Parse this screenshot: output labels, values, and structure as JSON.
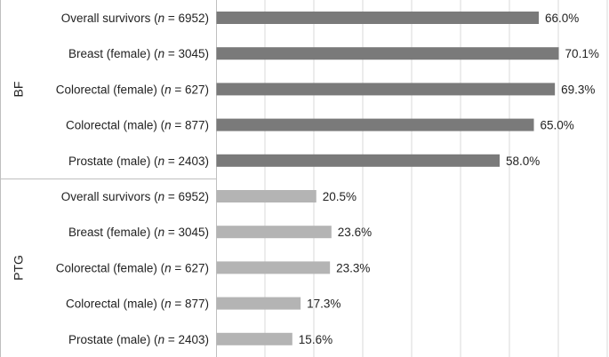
{
  "chart_data": {
    "type": "bar",
    "orientation": "horizontal",
    "title": "",
    "xlabel": "",
    "ylabel": "",
    "xlim": [
      0,
      80
    ],
    "grid": true,
    "groups": [
      {
        "name": "BF",
        "color": "#7a7a7a",
        "categories": [
          {
            "label": "Overall survivors",
            "n": "6952"
          },
          {
            "label": "Breast (female)",
            "n": "3045"
          },
          {
            "label": "Colorectal (female)",
            "n": "627"
          },
          {
            "label": "Colorectal (male)",
            "n": "877"
          },
          {
            "label": "Prostate (male)",
            "n": "2403"
          }
        ],
        "values": [
          66.0,
          70.1,
          69.3,
          65.0,
          58.0
        ],
        "value_labels": [
          "66.0%",
          "70.1%",
          "69.3%",
          "65.0%",
          "58.0%"
        ]
      },
      {
        "name": "PTG",
        "color": "#b4b4b4",
        "categories": [
          {
            "label": "Overall survivors",
            "n": "6952"
          },
          {
            "label": "Breast (female)",
            "n": "3045"
          },
          {
            "label": "Colorectal (female)",
            "n": "627"
          },
          {
            "label": "Colorectal (male)",
            "n": "877"
          },
          {
            "label": "Prostate (male)",
            "n": "2403"
          }
        ],
        "values": [
          20.5,
          23.6,
          23.3,
          17.3,
          15.6
        ],
        "value_labels": [
          "20.5%",
          "23.6%",
          "23.3%",
          "17.3%",
          "15.6%"
        ]
      }
    ]
  }
}
